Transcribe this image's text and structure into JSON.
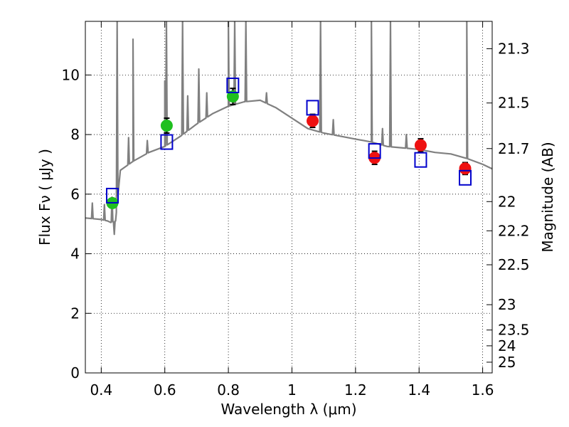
{
  "chart_data": {
    "type": "scatter",
    "xlabel": "Wavelength  λ (μm)",
    "ylabel": "Flux  Fν  ( μJy )",
    "ylabel_right": "Magnitude (AB)",
    "xlim": [
      0.35,
      1.63
    ],
    "ylim": [
      0,
      11.8
    ],
    "grid": true,
    "x_ticks": [
      0.4,
      0.6,
      0.8,
      1.0,
      1.2,
      1.4,
      1.6
    ],
    "x_tick_labels": [
      "0.4",
      "0.6",
      "0.8",
      "1",
      "1.2",
      "1.4",
      "1.6"
    ],
    "y_ticks": [
      0,
      2,
      4,
      6,
      8,
      10
    ],
    "y_tick_labels": [
      "0",
      "2",
      "4",
      "6",
      "8",
      "10"
    ],
    "right_ticks": [
      {
        "label": "21.3",
        "flux": 10.88
      },
      {
        "label": "21.5",
        "flux": 9.06
      },
      {
        "label": "21.7",
        "flux": 7.53
      },
      {
        "label": "22",
        "flux": 5.75
      },
      {
        "label": "22.2",
        "flux": 4.77
      },
      {
        "label": "22.5",
        "flux": 3.63
      },
      {
        "label": "23",
        "flux": 2.29
      },
      {
        "label": "23.5",
        "flux": 1.44
      },
      {
        "label": "24",
        "flux": 0.91
      },
      {
        "label": "25",
        "flux": 0.36
      }
    ],
    "series": [
      {
        "marker": "circle",
        "color": "#1fbf1f",
        "points": [
          {
            "x": 0.435,
            "y": 5.7,
            "err": 0.13
          },
          {
            "x": 0.606,
            "y": 8.3,
            "err": 0.25
          },
          {
            "x": 0.814,
            "y": 9.28,
            "err": 0.27
          }
        ]
      },
      {
        "marker": "circle",
        "color": "#ee1111",
        "points": [
          {
            "x": 1.065,
            "y": 8.46,
            "err": 0.22
          },
          {
            "x": 1.26,
            "y": 7.22,
            "err": 0.22
          },
          {
            "x": 1.405,
            "y": 7.64,
            "err": 0.22
          },
          {
            "x": 1.545,
            "y": 6.86,
            "err": 0.2
          }
        ]
      },
      {
        "marker": "open-square",
        "color": "#0000cc",
        "points": [
          {
            "x": 0.435,
            "y": 5.95
          },
          {
            "x": 0.606,
            "y": 7.75
          },
          {
            "x": 0.814,
            "y": 9.65
          },
          {
            "x": 1.065,
            "y": 8.9
          },
          {
            "x": 1.26,
            "y": 7.45
          },
          {
            "x": 1.405,
            "y": 7.15
          },
          {
            "x": 1.545,
            "y": 6.55
          }
        ]
      }
    ],
    "spectrum": {
      "color": "#808080",
      "continuum": [
        [
          0.35,
          5.2
        ],
        [
          0.4,
          5.15
        ],
        [
          0.42,
          5.1
        ],
        [
          0.43,
          5.05
        ],
        [
          0.445,
          5.1
        ],
        [
          0.46,
          6.8
        ],
        [
          0.5,
          7.1
        ],
        [
          0.55,
          7.4
        ],
        [
          0.6,
          7.6
        ],
        [
          0.65,
          7.95
        ],
        [
          0.7,
          8.35
        ],
        [
          0.75,
          8.7
        ],
        [
          0.8,
          8.95
        ],
        [
          0.85,
          9.1
        ],
        [
          0.9,
          9.15
        ],
        [
          0.95,
          8.9
        ],
        [
          1.0,
          8.55
        ],
        [
          1.05,
          8.2
        ],
        [
          1.1,
          8.05
        ],
        [
          1.15,
          7.95
        ],
        [
          1.2,
          7.85
        ],
        [
          1.25,
          7.75
        ],
        [
          1.3,
          7.6
        ],
        [
          1.35,
          7.55
        ],
        [
          1.4,
          7.5
        ],
        [
          1.45,
          7.4
        ],
        [
          1.5,
          7.35
        ],
        [
          1.55,
          7.2
        ],
        [
          1.6,
          7.0
        ],
        [
          1.63,
          6.85
        ]
      ],
      "lines": [
        {
          "x": 0.372,
          "h": 5.7
        },
        {
          "x": 0.41,
          "h": 5.65
        },
        {
          "x": 0.434,
          "h": 5.9
        },
        {
          "x": 0.441,
          "h": 4.65,
          "absorption": true
        },
        {
          "x": 0.45,
          "h": 11.8
        },
        {
          "x": 0.486,
          "h": 7.9
        },
        {
          "x": 0.5,
          "h": 11.2
        },
        {
          "x": 0.545,
          "h": 7.8
        },
        {
          "x": 0.6,
          "h": 9.8
        },
        {
          "x": 0.605,
          "h": 11.8
        },
        {
          "x": 0.656,
          "h": 11.8
        },
        {
          "x": 0.672,
          "h": 9.3
        },
        {
          "x": 0.707,
          "h": 10.2
        },
        {
          "x": 0.732,
          "h": 9.4
        },
        {
          "x": 0.8,
          "h": 11.8
        },
        {
          "x": 0.82,
          "h": 11.8
        },
        {
          "x": 0.855,
          "h": 11.8
        },
        {
          "x": 0.92,
          "h": 9.4
        },
        {
          "x": 1.09,
          "h": 11.8
        },
        {
          "x": 1.13,
          "h": 8.5
        },
        {
          "x": 1.25,
          "h": 11.8
        },
        {
          "x": 1.285,
          "h": 8.2
        },
        {
          "x": 1.31,
          "h": 11.8
        },
        {
          "x": 1.36,
          "h": 8.0
        },
        {
          "x": 1.55,
          "h": 11.8
        }
      ]
    }
  }
}
